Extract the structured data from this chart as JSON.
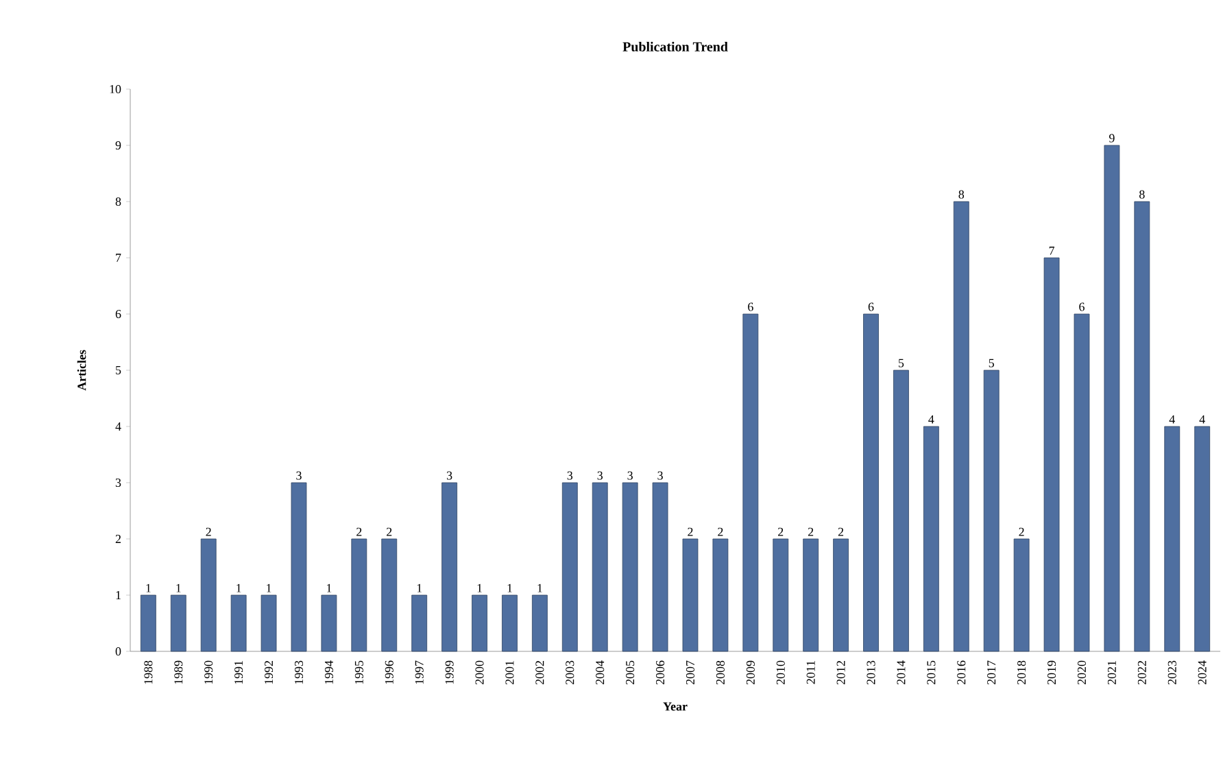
{
  "chart_data": {
    "type": "bar",
    "title": "Publication Trend",
    "xlabel": "Year",
    "ylabel": "Articles",
    "categories": [
      "1988",
      "1989",
      "1990",
      "1991",
      "1992",
      "1993",
      "1994",
      "1995",
      "1996",
      "1997",
      "1999",
      "2000",
      "2001",
      "2002",
      "2003",
      "2004",
      "2005",
      "2006",
      "2007",
      "2008",
      "2009",
      "2010",
      "2011",
      "2012",
      "2013",
      "2014",
      "2015",
      "2016",
      "2017",
      "2018",
      "2019",
      "2020",
      "2021",
      "2022",
      "2023",
      "2024"
    ],
    "values": [
      1,
      1,
      2,
      1,
      1,
      3,
      1,
      2,
      2,
      1,
      3,
      1,
      1,
      1,
      3,
      3,
      3,
      3,
      2,
      2,
      6,
      2,
      2,
      2,
      6,
      5,
      4,
      8,
      5,
      2,
      7,
      6,
      9,
      8,
      4,
      4
    ],
    "color": "#4f6fa0",
    "ylim": [
      0,
      10
    ],
    "yticks": [
      0,
      1,
      2,
      3,
      4,
      5,
      6,
      7,
      8,
      9,
      10
    ],
    "grid": false,
    "data_labels": true
  }
}
